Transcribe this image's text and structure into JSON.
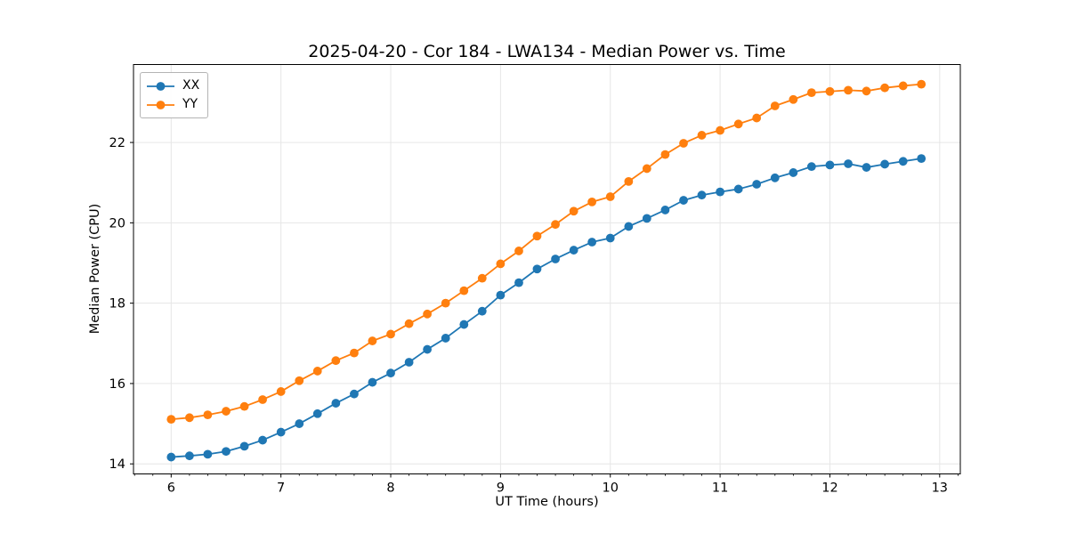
{
  "figure": {
    "title": "2025-04-20 - Cor 184 - LWA134 - Median Power vs. Time"
  },
  "chart_data": {
    "type": "line",
    "title": "2025-04-20 - Cor 184 - LWA134 - Median Power vs. Time",
    "xlabel": "UT Time (hours)",
    "ylabel": "Median Power (CPU)",
    "xlim": [
      5.657,
      13.188
    ],
    "ylim": [
      13.75,
      23.94
    ],
    "x_ticks": [
      6,
      7,
      8,
      9,
      10,
      11,
      12,
      13
    ],
    "y_ticks": [
      14,
      16,
      18,
      20,
      22
    ],
    "x_minor_step": 0.16667,
    "grid": true,
    "grid_color": "#e6e6e6",
    "spine_color": "#000000",
    "legend_position": "upper-left",
    "x": [
      6.0,
      6.167,
      6.333,
      6.5,
      6.667,
      6.833,
      7.0,
      7.167,
      7.333,
      7.5,
      7.667,
      7.833,
      8.0,
      8.167,
      8.333,
      8.5,
      8.667,
      8.833,
      9.0,
      9.167,
      9.333,
      9.5,
      9.667,
      9.833,
      10.0,
      10.167,
      10.333,
      10.5,
      10.667,
      10.833,
      11.0,
      11.167,
      11.333,
      11.5,
      11.667,
      11.833,
      12.0,
      12.167,
      12.333,
      12.5,
      12.667,
      12.833
    ],
    "series": [
      {
        "name": "XX",
        "color": "#1f77b4",
        "values": [
          14.17,
          14.2,
          14.24,
          14.31,
          14.44,
          14.59,
          14.79,
          15.0,
          15.25,
          15.51,
          15.74,
          16.03,
          16.26,
          16.53,
          16.85,
          17.13,
          17.47,
          17.8,
          18.2,
          18.51,
          18.85,
          19.1,
          19.32,
          19.52,
          19.62,
          19.91,
          20.11,
          20.32,
          20.56,
          20.69,
          20.77,
          20.84,
          20.96,
          21.12,
          21.25,
          21.4,
          21.44,
          21.47,
          21.38,
          21.46,
          21.53,
          21.6
        ]
      },
      {
        "name": "YY",
        "color": "#ff7f0e",
        "values": [
          15.11,
          15.15,
          15.22,
          15.31,
          15.43,
          15.6,
          15.8,
          16.07,
          16.31,
          16.57,
          16.76,
          17.06,
          17.23,
          17.49,
          17.73,
          18.0,
          18.31,
          18.62,
          18.98,
          19.3,
          19.67,
          19.96,
          20.29,
          20.52,
          20.65,
          21.03,
          21.35,
          21.7,
          21.98,
          22.18,
          22.3,
          22.46,
          22.61,
          22.91,
          23.07,
          23.24,
          23.27,
          23.3,
          23.28,
          23.36,
          23.41,
          23.45
        ]
      }
    ]
  }
}
